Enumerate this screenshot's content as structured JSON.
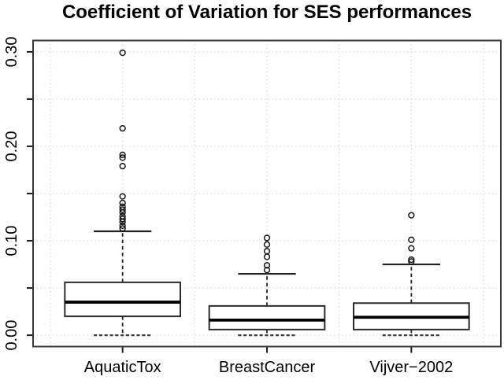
{
  "colors": {
    "background": "#ffffff",
    "text": "#000000",
    "axis": "#1c1c1c",
    "plot_border": "#383838",
    "grid": "#d6d6d6",
    "box_border": "#2b2b2b",
    "median": "#000000",
    "box_fill": "#ffffff"
  },
  "chart_data": {
    "type": "boxplot",
    "title": "Coefficient of Variation for SES performances",
    "xlabel": "",
    "ylabel": "",
    "categories": [
      "AquaticTox",
      "BreastCancer",
      "Vijver−2002"
    ],
    "ylim": [
      0.0,
      0.3
    ],
    "grid": true,
    "grid_style": "dotted",
    "grid_y_step": 0.05,
    "grid_x_step_units": 0.5,
    "yticks": {
      "minor_step": 0.05,
      "labeled_values": [
        0.0,
        0.1,
        0.2,
        0.3
      ],
      "labels": [
        "0.00",
        "0.10",
        "0.20",
        "0.30"
      ]
    },
    "boxes": [
      {
        "label": "AquaticTox",
        "whisker_low": 0.0,
        "q1": 0.02,
        "median": 0.035,
        "q3": 0.056,
        "whisker_high": 0.11,
        "outliers": [
          0.299,
          0.219,
          0.191,
          0.188,
          0.179,
          0.147,
          0.14,
          0.136,
          0.133,
          0.13,
          0.126,
          0.123,
          0.12,
          0.116,
          0.113
        ]
      },
      {
        "label": "BreastCancer",
        "whisker_low": 0.0,
        "q1": 0.006,
        "median": 0.016,
        "q3": 0.031,
        "whisker_high": 0.065,
        "outliers": [
          0.103,
          0.096,
          0.089,
          0.083,
          0.074,
          0.069
        ]
      },
      {
        "label": "Vijver−2002",
        "whisker_low": 0.0,
        "q1": 0.006,
        "median": 0.019,
        "q3": 0.034,
        "whisker_high": 0.075,
        "outliers": [
          0.127,
          0.101,
          0.092,
          0.08,
          0.078
        ]
      }
    ]
  }
}
